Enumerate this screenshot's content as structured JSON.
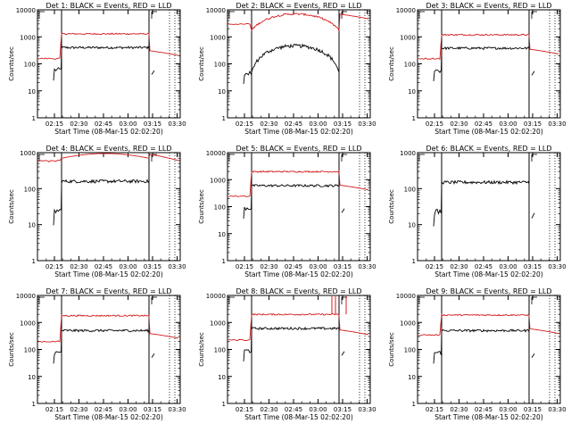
{
  "chart_data": {
    "type": "line",
    "x_ticks": [
      "02:15",
      "02:30",
      "02:45",
      "03:00",
      "03:15",
      "03:30"
    ],
    "y_ticks": [
      "1",
      "10",
      "100",
      "1000",
      "10000"
    ],
    "ylabel": "Counts/sec",
    "xlabel": "Start Time (08-Mar-15 02:02:20)",
    "y_scale": "log",
    "colors": {
      "events": "#000000",
      "lld": "#d41c1c"
    },
    "panels": [
      {
        "title": "Det 1: BLACK = Events, RED = LLD",
        "ylim": [
          1,
          10000
        ],
        "events_level": 400,
        "lld_level": 1300,
        "lld_left": 160,
        "lld_tail": 220,
        "lld_shape": "flat",
        "tail_marker": true
      },
      {
        "title": "Det 2: BLACK = Events, RED = LLD",
        "ylim": [
          1,
          10000
        ],
        "events_level": 300,
        "lld_level": 3000,
        "lld_left": 3000,
        "lld_tail": 5000,
        "lld_shape": "hump",
        "tail_marker": false
      },
      {
        "title": "Det 3: BLACK = Events, RED = LLD",
        "ylim": [
          1,
          10000
        ],
        "events_level": 380,
        "lld_level": 1200,
        "lld_left": 160,
        "lld_tail": 250,
        "lld_shape": "flat",
        "tail_marker": true
      },
      {
        "title": "Det 4: BLACK = Events, RED = LLD",
        "ylim": [
          1,
          1000
        ],
        "events_level": 160,
        "lld_level": 700,
        "lld_left": 600,
        "lld_tail": 650,
        "lld_shape": "wave",
        "tail_marker": false
      },
      {
        "title": "Det 5: BLACK = Events, RED = LLD",
        "ylim": [
          1,
          10000
        ],
        "events_level": 600,
        "lld_level": 2000,
        "lld_left": 250,
        "lld_tail": 450,
        "lld_shape": "flat",
        "tail_marker": true
      },
      {
        "title": "Det 6: BLACK = Events, RED = LLD",
        "ylim": [
          1,
          1000
        ],
        "events_level": 150,
        "lld_level": null,
        "lld_left": null,
        "lld_tail": null,
        "lld_shape": "none",
        "tail_marker": true
      },
      {
        "title": "Det 7: BLACK = Events, RED = LLD",
        "ylim": [
          1,
          10000
        ],
        "events_level": 500,
        "lld_level": 1800,
        "lld_left": 200,
        "lld_tail": 280,
        "lld_shape": "flat",
        "tail_marker": true
      },
      {
        "title": "Det 8: BLACK = Events, RED = LLD",
        "ylim": [
          1,
          10000
        ],
        "events_level": 600,
        "lld_level": 2000,
        "lld_left": 230,
        "lld_tail": 380,
        "lld_shape": "spikes",
        "tail_marker": true
      },
      {
        "title": "Det 9: BLACK = Events, RED = LLD",
        "ylim": [
          1,
          10000
        ],
        "events_level": 500,
        "lld_level": 1900,
        "lld_left": 350,
        "lld_tail": 420,
        "lld_shape": "flat",
        "tail_marker": true
      }
    ]
  }
}
